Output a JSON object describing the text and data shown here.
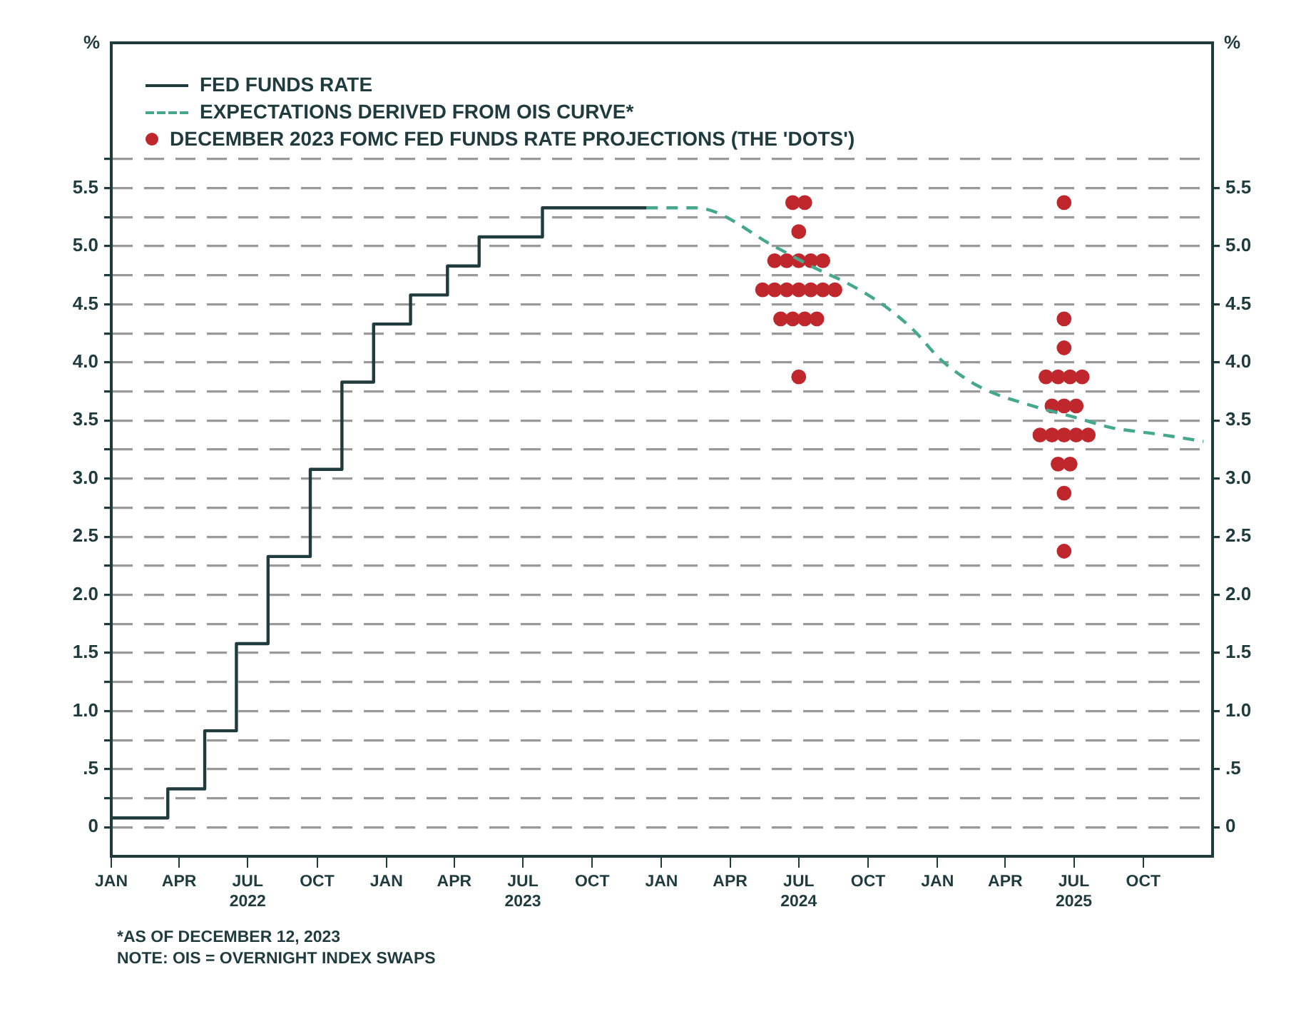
{
  "chart_data": {
    "type": "step",
    "ylabel": "%",
    "y2label": "%",
    "xlim": [
      "2022-01-01",
      "2026-01-01"
    ],
    "xticks": [
      {
        "value": "2022-01-01",
        "label": "JAN"
      },
      {
        "value": "2022-04-01",
        "label": "APR"
      },
      {
        "value": "2022-07-01",
        "label": "JUL\n2022"
      },
      {
        "value": "2022-10-01",
        "label": "OCT"
      },
      {
        "value": "2023-01-01",
        "label": "JAN"
      },
      {
        "value": "2023-04-01",
        "label": "APR"
      },
      {
        "value": "2023-07-01",
        "label": "JUL\n2023"
      },
      {
        "value": "2023-10-01",
        "label": "OCT"
      },
      {
        "value": "2024-01-01",
        "label": "JAN"
      },
      {
        "value": "2024-04-01",
        "label": "APR"
      },
      {
        "value": "2024-07-01",
        "label": "JUL\n2024"
      },
      {
        "value": "2024-10-01",
        "label": "OCT"
      },
      {
        "value": "2025-01-01",
        "label": "JAN"
      },
      {
        "value": "2025-04-01",
        "label": "APR"
      },
      {
        "value": "2025-07-01",
        "label": "JUL\n2025"
      },
      {
        "value": "2025-10-01",
        "label": "OCT"
      }
    ],
    "ylim": [
      -0.25,
      6.75
    ],
    "yticks": [
      0,
      {
        "value": 0.25,
        "label": null
      },
      {
        "value": 0.5,
        "label": ".5"
      },
      {
        "value": 0.75,
        "label": null
      },
      {
        "value": 1,
        "label": "1.0"
      },
      {
        "value": 1.25,
        "label": null
      },
      {
        "value": 1.5,
        "label": "1.5"
      },
      {
        "value": 1.75,
        "label": null
      },
      {
        "value": 2,
        "label": "2.0"
      },
      {
        "value": 2.25,
        "label": null
      },
      {
        "value": 2.5,
        "label": "2.5"
      },
      {
        "value": 2.75,
        "label": null
      },
      {
        "value": 3,
        "label": "3.0"
      },
      {
        "value": 3.25,
        "label": null
      },
      {
        "value": 3.5,
        "label": "3.5"
      },
      {
        "value": 3.75,
        "label": null
      },
      {
        "value": 4,
        "label": "4.0"
      },
      {
        "value": 4.25,
        "label": null
      },
      {
        "value": 4.5,
        "label": "4.5"
      },
      {
        "value": 4.75,
        "label": null
      },
      {
        "value": 5,
        "label": "5.0"
      },
      {
        "value": 5.25,
        "label": null
      },
      {
        "value": 5.5,
        "label": "5.5"
      },
      {
        "value": 5.75,
        "label": null
      }
    ],
    "y2lim": [
      -0.25,
      6.75
    ],
    "y2ticks": [
      0,
      {
        "value": 0.5,
        "label": ".5"
      },
      {
        "value": 1,
        "label": "1.0"
      },
      {
        "value": 1.5,
        "label": "1.5"
      },
      {
        "value": 2,
        "label": "2.0"
      },
      {
        "value": 2.5,
        "label": "2.5"
      },
      {
        "value": 3,
        "label": "3.0"
      },
      {
        "value": 3.5,
        "label": "3.5"
      },
      {
        "value": 4,
        "label": "4.0"
      },
      {
        "value": 4.5,
        "label": "4.5"
      },
      {
        "value": 5,
        "label": "5.0"
      },
      {
        "value": 5.5,
        "label": "5.5"
      }
    ],
    "grid": "y",
    "legend": "top left",
    "series": [
      {
        "name": "FED FUNDS RATE",
        "color": "#1f3b3e",
        "x": [
          "2022-01-01",
          "2022-03-17",
          "2022-05-05",
          "2022-06-16",
          "2022-07-28",
          "2022-09-22",
          "2022-11-03",
          "2022-12-15",
          "2023-02-02",
          "2023-03-23",
          "2023-05-04",
          "2023-07-27",
          "2023-12-12"
        ],
        "values": [
          0.08,
          0.33,
          0.83,
          1.58,
          2.33,
          3.08,
          3.83,
          4.33,
          4.58,
          4.83,
          5.08,
          5.33,
          5.33
        ]
      },
      {
        "name": "EXPECTATIONS DERIVED FROM OIS CURVE*",
        "type": "line",
        "line_style": "dashed",
        "color": "#45a88c",
        "x": [
          "2023-12-12",
          "2024-02-15",
          "2024-06-01",
          "2024-07-20",
          "2024-09-04",
          "2024-10-22",
          "2024-11-30",
          "2025-01-06",
          "2025-02-26",
          "2025-05-05",
          "2025-07-01",
          "2025-08-19",
          "2025-10-23",
          "2025-12-20"
        ],
        "values": [
          5.33,
          5.33,
          4.99,
          4.82,
          4.68,
          4.49,
          4.28,
          4.02,
          3.79,
          3.63,
          3.53,
          3.44,
          3.38,
          3.32
        ]
      },
      {
        "name": "DECEMBER 2023 FOMC FED FUNDS RATE PROJECTIONS (THE 'DOTS')",
        "type": "scatter",
        "marker": "circle",
        "color": "#c0272d",
        "x": [
          "2024-06-23",
          "2024-07-09",
          "2024-07-01",
          "2024-05-30",
          "2024-06-15",
          "2024-07-01",
          "2024-07-17",
          "2024-08-02",
          "2024-05-14",
          "2024-05-30",
          "2024-06-15",
          "2024-07-01",
          "2024-07-17",
          "2024-08-02",
          "2024-08-18",
          "2024-06-07",
          "2024-06-23",
          "2024-07-09",
          "2024-07-25",
          "2024-07-01",
          "2025-06-18",
          "2025-06-18",
          "2025-06-18",
          "2025-05-25",
          "2025-06-10",
          "2025-06-26",
          "2025-07-12",
          "2025-06-02",
          "2025-06-18",
          "2025-07-04",
          "2025-05-17",
          "2025-06-02",
          "2025-06-18",
          "2025-07-04",
          "2025-07-20",
          "2025-06-10",
          "2025-06-26",
          "2025-06-18",
          "2025-06-18"
        ],
        "values": [
          5.375,
          5.375,
          5.125,
          4.875,
          4.875,
          4.875,
          4.875,
          4.875,
          4.625,
          4.625,
          4.625,
          4.625,
          4.625,
          4.625,
          4.625,
          4.375,
          4.375,
          4.375,
          4.375,
          3.875,
          5.375,
          4.375,
          4.125,
          3.875,
          3.875,
          3.875,
          3.875,
          3.625,
          3.625,
          3.625,
          3.375,
          3.375,
          3.375,
          3.375,
          3.375,
          3.125,
          3.125,
          2.875,
          2.375
        ]
      }
    ],
    "annotations": [
      "*AS OF DECEMBER 12, 2023",
      "NOTE: OIS = OVERNIGHT INDEX SWAPS"
    ]
  }
}
